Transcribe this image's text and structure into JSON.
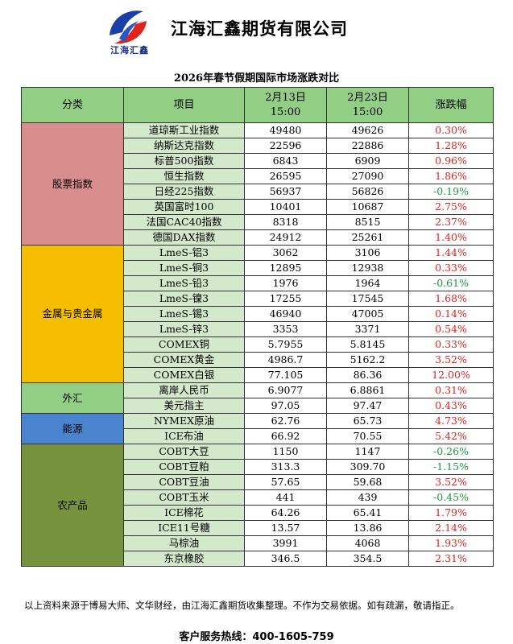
{
  "company": {
    "name": "江海汇鑫期货有限公司",
    "logo_text": "江海汇鑫"
  },
  "title": "2026年春节假期国际市场涨跌对比",
  "headers": {
    "category": "分类",
    "item": "项目",
    "date1": "2月13日",
    "time1": "15:00",
    "date2": "2月23日",
    "time2": "15:00",
    "change": "涨跌幅"
  },
  "groups": [
    {
      "name": "股票指数",
      "color": "#d98e8e",
      "rows": [
        {
          "item": "道琼斯工业指数",
          "v1": "49480",
          "v2": "49626",
          "chg": "0.30%"
        },
        {
          "item": "纳斯达克指数",
          "v1": "22596",
          "v2": "22886",
          "chg": "1.28%"
        },
        {
          "item": "标普500指数",
          "v1": "6843",
          "v2": "6909",
          "chg": "0.96%"
        },
        {
          "item": "恒生指数",
          "v1": "26595",
          "v2": "27090",
          "chg": "1.86%"
        },
        {
          "item": "日经225指数",
          "v1": "56937",
          "v2": "56826",
          "chg": "-0.19%"
        },
        {
          "item": "英国富时100",
          "v1": "10401",
          "v2": "10687",
          "chg": "2.75%"
        },
        {
          "item": "法国CAC40指数",
          "v1": "8318",
          "v2": "8515",
          "chg": "2.37%"
        },
        {
          "item": "德国DAX指数",
          "v1": "24912",
          "v2": "25261",
          "chg": "1.40%"
        }
      ]
    },
    {
      "name": "金属与贵金属",
      "color": "#f5be00",
      "rows": [
        {
          "item": "LmeS-铝3",
          "v1": "3062",
          "v2": "3106",
          "chg": "1.44%"
        },
        {
          "item": "LmeS-铜3",
          "v1": "12895",
          "v2": "12938",
          "chg": "0.33%"
        },
        {
          "item": "LmeS-铅3",
          "v1": "1976",
          "v2": "1964",
          "chg": "-0.61%"
        },
        {
          "item": "LmeS-镍3",
          "v1": "17255",
          "v2": "17545",
          "chg": "1.68%"
        },
        {
          "item": "LmeS-锡3",
          "v1": "46940",
          "v2": "47005",
          "chg": "0.14%"
        },
        {
          "item": "LmeS-锌3",
          "v1": "3353",
          "v2": "3371",
          "chg": "0.54%"
        },
        {
          "item": "COMEX铜",
          "v1": "5.7955",
          "v2": "5.8145",
          "chg": "0.33%"
        },
        {
          "item": "COMEX黄金",
          "v1": "4986.7",
          "v2": "5162.2",
          "chg": "3.52%"
        },
        {
          "item": "COMEX白银",
          "v1": "77.105",
          "v2": "86.36",
          "chg": "12.00%"
        }
      ]
    },
    {
      "name": "外汇",
      "color": "#92cf85",
      "rows": [
        {
          "item": "离岸人民币",
          "v1": "6.9077",
          "v2": "6.8861",
          "chg": "0.31%"
        },
        {
          "item": "美元指主",
          "v1": "97.05",
          "v2": "97.47",
          "chg": "0.43%"
        }
      ]
    },
    {
      "name": "能源",
      "color": "#4a84cf",
      "rows": [
        {
          "item": "NYMEX原油",
          "v1": "62.76",
          "v2": "65.73",
          "chg": "4.73%"
        },
        {
          "item": "ICE布油",
          "v1": "66.92",
          "v2": "70.55",
          "chg": "5.42%"
        }
      ]
    },
    {
      "name": "农产品",
      "color": "#76923c",
      "rows": [
        {
          "item": "COBT大豆",
          "v1": "1150",
          "v2": "1147",
          "chg": "-0.26%"
        },
        {
          "item": "COBT豆粕",
          "v1": "313.3",
          "v2": "309.70",
          "chg": "-1.15%"
        },
        {
          "item": "COBT豆油",
          "v1": "57.65",
          "v2": "59.68",
          "chg": "3.52%"
        },
        {
          "item": "COBT玉米",
          "v1": "441",
          "v2": "439",
          "chg": "-0.45%"
        },
        {
          "item": "ICE棉花",
          "v1": "64.26",
          "v2": "65.41",
          "chg": "1.79%"
        },
        {
          "item": "ICE11号糖",
          "v1": "13.57",
          "v2": "13.86",
          "chg": "2.14%"
        },
        {
          "item": "马棕油",
          "v1": "3991",
          "v2": "4068",
          "chg": "1.93%"
        },
        {
          "item": "东京橡胶",
          "v1": "346.5",
          "v2": "354.5",
          "chg": "2.31%"
        }
      ]
    }
  ],
  "colors": {
    "positive": "#e0241b",
    "negative": "#1a9a3a",
    "header_bg": "#92cf85",
    "item_bg": "#d4e8cc"
  },
  "footer": {
    "note": "以上资料来源于博易大师、文华财经，由江海汇鑫期货收集整理。不作为交易依据。如有疏漏，敬请指正。",
    "hotline": "客户服务热线：400-1605-759"
  }
}
